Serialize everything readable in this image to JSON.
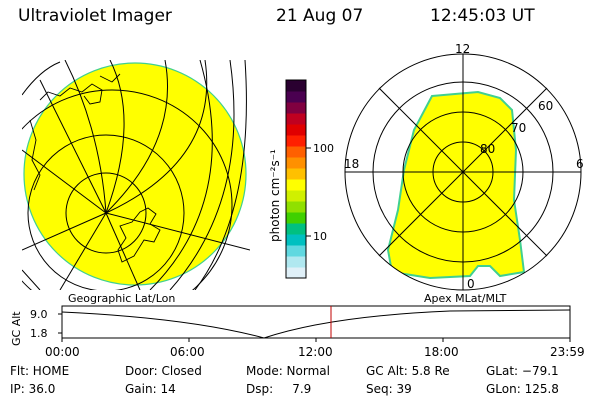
{
  "header": {
    "title": "Ultraviolet Imager",
    "date": "21 Aug 07",
    "time": "12:45:03 UT"
  },
  "colorbar": {
    "unit_label": "photon cm⁻²s⁻¹",
    "ticks": [
      "100",
      "10"
    ],
    "colors": [
      "#2a0030",
      "#4a0050",
      "#800040",
      "#c00020",
      "#e00000",
      "#ff2000",
      "#ff6000",
      "#ff9000",
      "#ffc000",
      "#ffff00",
      "#d0f000",
      "#90e000",
      "#40d000",
      "#00c080",
      "#00c0c0",
      "#60d8e0",
      "#b0e8f0",
      "#e0f0f8"
    ]
  },
  "left_panel": {
    "caption": "Geographic Lat/Lon"
  },
  "right_panel": {
    "caption": "Apex MLat/MLT",
    "mlt_labels": [
      "12",
      "18",
      "6",
      "0"
    ],
    "mlat_labels": [
      "60",
      "70",
      "80"
    ]
  },
  "altitude_plot": {
    "ylabel": "GC Alt",
    "yticks": [
      "9.0",
      "1.8"
    ],
    "xticks": [
      "00:00",
      "06:00",
      "12:00",
      "18:00",
      "23:59"
    ]
  },
  "info_rows": [
    [
      "Flt: HOME",
      "Door: Closed",
      "Mode: Normal",
      "GC Alt: 5.8 Re",
      "GLat: −79.1"
    ],
    [
      "IP: 36.0",
      "Gain: 14",
      "Dsp:     7.9",
      "Seq: 39",
      "GLon: 125.8"
    ]
  ],
  "colors": {
    "fill": "#ffff00",
    "edge": "#40d090",
    "marker": "#c00000"
  }
}
